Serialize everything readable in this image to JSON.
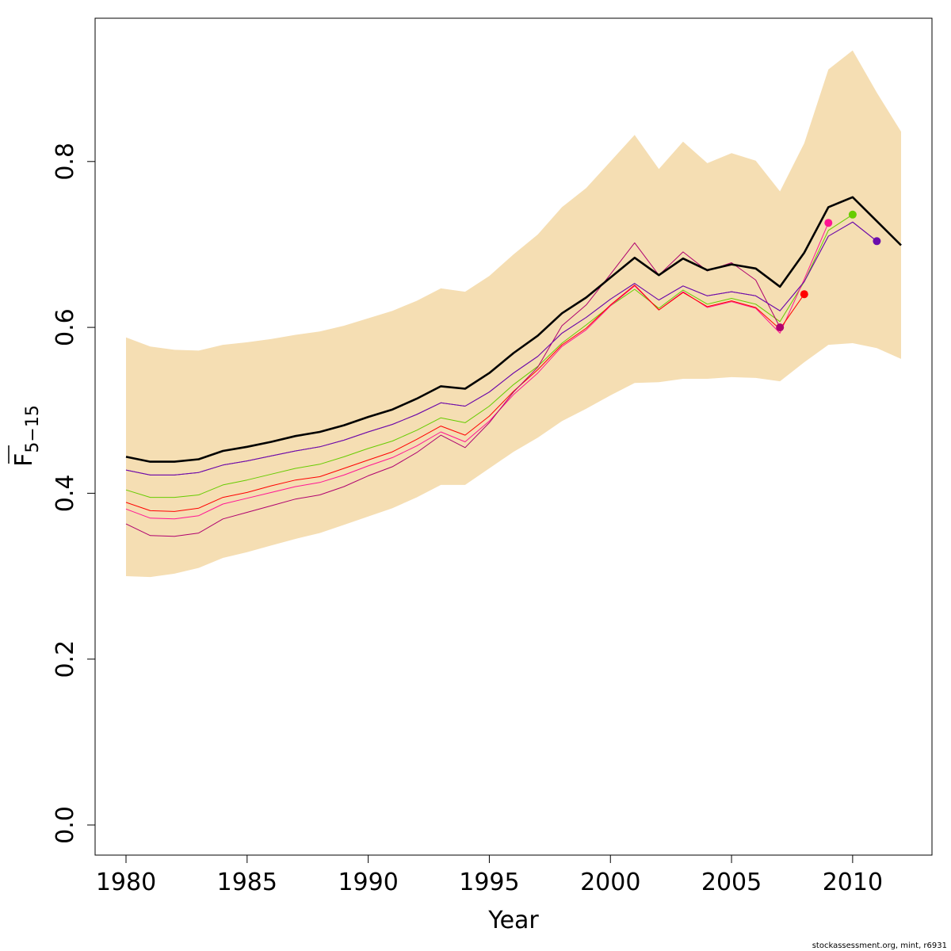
{
  "chart_data": {
    "type": "line",
    "xlabel": "Year",
    "ylabel": {
      "main": "F",
      "sub": "5−15",
      "overline": true
    },
    "xlim": [
      1978.7,
      1983.2
    ],
    "x_ticks": [
      1980,
      1985,
      1990,
      1995,
      2000,
      2005,
      2010
    ],
    "y_ticks": [
      0.0,
      0.2,
      0.4,
      0.6,
      0.8
    ],
    "y_tick_labels": [
      "0.0",
      "0.2",
      "0.4",
      "0.6",
      "0.8"
    ],
    "x_tick_labels": [
      "1980",
      "1985",
      "1990",
      "1995",
      "2000",
      "2005",
      "2010"
    ],
    "ylim": [
      -0.038,
      0.972
    ],
    "grid": false,
    "footer": "stockassessment.org, mint, r6931",
    "confidence_band": {
      "color": "#f5deb3",
      "x": [
        1980,
        1981,
        1982,
        1983,
        1984,
        1985,
        1986,
        1987,
        1988,
        1989,
        1990,
        1991,
        1992,
        1993,
        1994,
        1995,
        1996,
        1997,
        1998,
        1999,
        2000,
        2001,
        2002,
        2003,
        2004,
        2005,
        2006,
        2007,
        2008,
        2009,
        2010,
        2011,
        2012
      ],
      "lower": [
        0.3,
        0.299,
        0.303,
        0.31,
        0.322,
        0.329,
        0.337,
        0.345,
        0.352,
        0.362,
        0.372,
        0.382,
        0.395,
        0.41,
        0.41,
        0.43,
        0.45,
        0.467,
        0.487,
        0.502,
        0.518,
        0.533,
        0.534,
        0.538,
        0.538,
        0.54,
        0.539,
        0.535,
        0.558,
        0.579,
        0.581,
        0.575,
        0.562
      ],
      "upper": [
        0.588,
        0.577,
        0.573,
        0.572,
        0.579,
        0.582,
        0.586,
        0.591,
        0.595,
        0.602,
        0.611,
        0.62,
        0.632,
        0.647,
        0.643,
        0.662,
        0.688,
        0.712,
        0.745,
        0.768,
        0.8,
        0.832,
        0.791,
        0.824,
        0.798,
        0.81,
        0.801,
        0.764,
        0.822,
        0.911,
        0.934,
        0.883,
        0.836
      ]
    },
    "series": [
      {
        "color": "#000000",
        "width": 2.6,
        "start": 1980,
        "values": [
          0.444,
          0.438,
          0.438,
          0.441,
          0.451,
          0.456,
          0.462,
          0.469,
          0.474,
          0.482,
          0.492,
          0.501,
          0.514,
          0.529,
          0.526,
          0.545,
          0.569,
          0.59,
          0.617,
          0.636,
          0.66,
          0.684,
          0.663,
          0.683,
          0.669,
          0.676,
          0.671,
          0.649,
          0.69,
          0.745,
          0.757,
          0.728,
          0.699
        ]
      },
      {
        "color": "#8b008b",
        "width": 1,
        "start": 1980,
        "end_marker": false,
        "values": [
          0.428,
          0.422,
          0.422,
          0.425,
          0.434,
          0.439,
          0.445,
          0.451,
          0.456,
          0.464,
          0.474,
          0.483,
          0.495,
          0.509,
          0.505,
          0.522,
          0.545,
          0.565,
          0.593,
          0.612,
          0.634,
          0.653,
          0.633,
          0.65,
          0.638,
          0.643,
          0.638,
          0.62,
          0.655,
          0.71,
          0.727,
          0.704
        ]
      },
      {
        "color": "#66cc00",
        "width": 1,
        "start": 1980,
        "end_marker": true,
        "values": [
          0.404,
          0.395,
          0.395,
          0.398,
          0.41,
          0.416,
          0.423,
          0.43,
          0.435,
          0.444,
          0.454,
          0.463,
          0.476,
          0.491,
          0.485,
          0.505,
          0.531,
          0.553,
          0.581,
          0.603,
          0.626,
          0.646,
          0.623,
          0.645,
          0.628,
          0.635,
          0.628,
          0.607,
          0.655,
          0.717,
          0.736
        ]
      },
      {
        "color": "#ff1493",
        "width": 1,
        "start": 1980,
        "end_marker": true,
        "values": [
          0.381,
          0.37,
          0.369,
          0.373,
          0.387,
          0.394,
          0.401,
          0.408,
          0.413,
          0.422,
          0.433,
          0.443,
          0.457,
          0.474,
          0.462,
          0.487,
          0.519,
          0.545,
          0.577,
          0.597,
          0.626,
          0.65,
          0.621,
          0.643,
          0.624,
          0.631,
          0.623,
          0.593,
          0.658,
          0.726
        ]
      },
      {
        "color": "#ff0000",
        "width": 1,
        "start": 1980,
        "end_marker": true,
        "values": [
          0.389,
          0.379,
          0.378,
          0.382,
          0.395,
          0.401,
          0.409,
          0.416,
          0.42,
          0.43,
          0.44,
          0.45,
          0.465,
          0.481,
          0.47,
          0.493,
          0.523,
          0.549,
          0.579,
          0.599,
          0.627,
          0.651,
          0.621,
          0.642,
          0.625,
          0.632,
          0.624,
          0.598,
          0.64
        ]
      },
      {
        "color": "#b0006e",
        "width": 1,
        "start": 1980,
        "end_marker": true,
        "values": [
          0.363,
          0.349,
          0.348,
          0.352,
          0.369,
          0.377,
          0.385,
          0.393,
          0.398,
          0.408,
          0.421,
          0.432,
          0.449,
          0.47,
          0.455,
          0.485,
          0.522,
          0.552,
          0.602,
          0.627,
          0.664,
          0.702,
          0.663,
          0.691,
          0.668,
          0.678,
          0.657,
          0.6
        ]
      },
      {
        "color": "#6a0dad",
        "width": 1,
        "start": 1980,
        "end_marker": true,
        "values_override_end": true,
        "values": [
          0.428,
          0.422,
          0.422,
          0.425,
          0.434,
          0.439,
          0.445,
          0.451,
          0.456,
          0.464,
          0.474,
          0.483,
          0.495,
          0.509,
          0.505,
          0.522,
          0.545,
          0.565,
          0.593,
          0.612,
          0.634,
          0.653,
          0.633,
          0.65,
          0.638,
          0.643,
          0.638,
          0.62,
          0.655,
          0.71,
          0.727,
          0.704
        ]
      }
    ]
  }
}
